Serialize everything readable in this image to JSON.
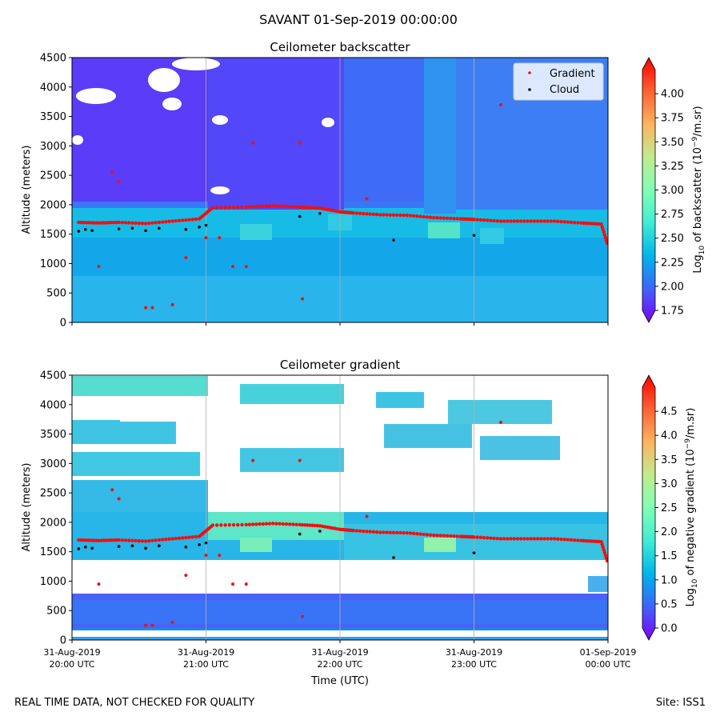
{
  "figure": {
    "suptitle": "SAVANT 01-Sep-2019 00:00:00",
    "footer_left": "REAL TIME DATA, NOT CHECKED FOR QUALITY",
    "footer_right": "Site: ISS1"
  },
  "colors": {
    "gradient_marker": "#ee1111",
    "cloud_marker": "#000000",
    "grid": "#b0b0b0",
    "colormap": [
      "#8000ff",
      "#4062fa",
      "#00b5eb",
      "#40ecd4",
      "#80ffb4",
      "#c0eb8d",
      "#ffb360",
      "#ff6030",
      "#ff0000"
    ]
  },
  "chart_data": [
    {
      "type": "heatmap",
      "title": "Ceilometer backscatter",
      "xlabel": "",
      "ylabel": "Altitude (meters)",
      "ylim": [
        0,
        4500
      ],
      "y_ticks": [
        "0",
        "500",
        "1000",
        "1500",
        "2000",
        "2500",
        "3000",
        "3500",
        "4000",
        "4500"
      ],
      "x_ticks": [],
      "colorbar": {
        "label": "Log10 of backscatter (10^-9/m.sr)",
        "label_parts": [
          "Log",
          "10",
          " of backscatter (10",
          "−9",
          "/m.sr)"
        ],
        "range": [
          1.75,
          4.25
        ],
        "ticks": [
          "1.75",
          "2.00",
          "2.25",
          "2.50",
          "2.75",
          "3.00",
          "3.25",
          "3.50",
          "3.75",
          "4.00"
        ]
      },
      "legend": {
        "placement": "top-right",
        "entries": [
          "Gradient",
          "Cloud"
        ]
      },
      "gridlines_at_hours": [
        1,
        2,
        3
      ]
    },
    {
      "type": "heatmap",
      "title": "Ceilometer gradient",
      "xlabel": "Time (UTC)",
      "ylabel": "Altitude (meters)",
      "ylim": [
        0,
        4500
      ],
      "y_ticks": [
        "0",
        "500",
        "1000",
        "1500",
        "2000",
        "2500",
        "3000",
        "3500",
        "4000",
        "4500"
      ],
      "x_ticks": [
        [
          "31-Aug-2019",
          "20:00 UTC"
        ],
        [
          "31-Aug-2019",
          "21:00 UTC"
        ],
        [
          "31-Aug-2019",
          "22:00 UTC"
        ],
        [
          "31-Aug-2019",
          "23:00 UTC"
        ],
        [
          "01-Sep-2019",
          "00:00 UTC"
        ]
      ],
      "xlim_hours": [
        0,
        4
      ],
      "colorbar": {
        "label": "Log10 of negative gradient (10^-9/m.sr)",
        "label_parts": [
          "Log",
          "10",
          " of negative gradient (10",
          "−9",
          "/m.sr)"
        ],
        "range": [
          0.0,
          5.0
        ],
        "ticks": [
          "0.0",
          "0.5",
          "1.0",
          "1.5",
          "2.0",
          "2.5",
          "3.0",
          "3.5",
          "4.0",
          "4.5"
        ]
      },
      "gridlines_at_hours": [
        1,
        2,
        3
      ]
    }
  ],
  "series": {
    "gradient_height_m": [
      [
        0.05,
        1700
      ],
      [
        0.2,
        1690
      ],
      [
        0.35,
        1700
      ],
      [
        0.55,
        1680
      ],
      [
        0.75,
        1720
      ],
      [
        0.95,
        1760
      ],
      [
        1.05,
        1950
      ],
      [
        1.3,
        1960
      ],
      [
        1.5,
        1980
      ],
      [
        1.7,
        1960
      ],
      [
        1.85,
        1940
      ],
      [
        2.0,
        1880
      ],
      [
        2.1,
        1860
      ],
      [
        2.3,
        1830
      ],
      [
        2.5,
        1820
      ],
      [
        2.7,
        1780
      ],
      [
        2.9,
        1760
      ],
      [
        3.0,
        1750
      ],
      [
        3.2,
        1720
      ],
      [
        3.4,
        1720
      ],
      [
        3.6,
        1720
      ],
      [
        3.8,
        1690
      ],
      [
        3.95,
        1670
      ],
      [
        4.0,
        1300
      ]
    ],
    "gradient_other_m": [
      [
        0.3,
        2550
      ],
      [
        0.35,
        2400
      ],
      [
        0.55,
        250
      ],
      [
        0.6,
        250
      ],
      [
        0.75,
        300
      ],
      [
        0.85,
        1100
      ],
      [
        1.2,
        950
      ],
      [
        1.3,
        950
      ],
      [
        1.35,
        3050
      ],
      [
        1.7,
        3050
      ],
      [
        2.2,
        2100
      ],
      [
        3.2,
        3700
      ],
      [
        1.0,
        1440
      ],
      [
        1.1,
        1440
      ],
      [
        0.2,
        950
      ],
      [
        1.72,
        400
      ]
    ],
    "cloud_height_m": [
      [
        0.05,
        1550
      ],
      [
        0.1,
        1580
      ],
      [
        0.15,
        1560
      ],
      [
        0.35,
        1590
      ],
      [
        0.45,
        1600
      ],
      [
        0.55,
        1560
      ],
      [
        0.65,
        1600
      ],
      [
        0.85,
        1580
      ],
      [
        0.95,
        1620
      ],
      [
        1.0,
        1650
      ],
      [
        1.7,
        1800
      ],
      [
        1.85,
        1850
      ],
      [
        2.4,
        1400
      ],
      [
        3.0,
        1480
      ]
    ]
  }
}
